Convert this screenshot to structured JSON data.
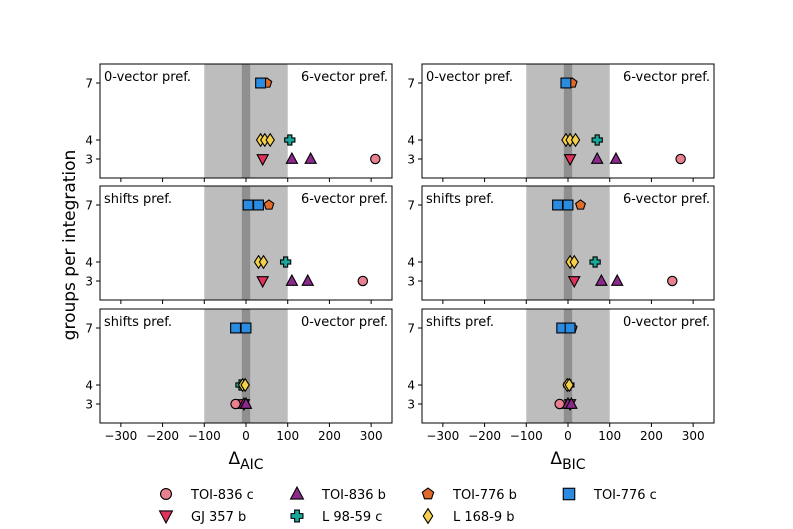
{
  "chart_data": {
    "type": "scatter",
    "ylabel": "groups per integration",
    "columns": [
      {
        "xlabel_main": "Δ",
        "xlabel_sub": "AIC"
      },
      {
        "xlabel_main": "Δ",
        "xlabel_sub": "BIC"
      }
    ],
    "xlim": [
      -350,
      350
    ],
    "ylim": [
      2,
      8
    ],
    "xticks": [
      -300,
      -200,
      -100,
      0,
      100,
      200,
      300
    ],
    "xtick_labels": [
      "−300",
      "−200",
      "−100",
      "0",
      "100",
      "200",
      "300"
    ],
    "yticks": [
      3,
      4,
      7
    ],
    "ytick_labels": [
      "3",
      "4",
      "7"
    ],
    "shaded_outer": [
      -100,
      100
    ],
    "shaded_inner": [
      -10,
      10
    ],
    "series": [
      {
        "name": "TOI-836 c",
        "marker": "circle",
        "color": "#e8808f"
      },
      {
        "name": "GJ 357 b",
        "marker": "triangle-down",
        "color": "#e0315a"
      },
      {
        "name": "TOI-836 b",
        "marker": "triangle-up",
        "color": "#8b2a8b"
      },
      {
        "name": "L 98-59 c",
        "marker": "plus",
        "color": "#1aa89a"
      },
      {
        "name": "TOI-776 b",
        "marker": "pentagon",
        "color": "#e06a2a"
      },
      {
        "name": "L 168-9 b",
        "marker": "diamond",
        "color": "#f5d04a"
      },
      {
        "name": "TOI-776 c",
        "marker": "square",
        "color": "#2b8be0"
      }
    ],
    "panels": [
      {
        "row": 0,
        "col": 0,
        "left_label": "0-vector pref.",
        "right_label": "6-vector pref.",
        "points": [
          {
            "series": 0,
            "x": 310,
            "y": 3
          },
          {
            "series": 1,
            "x": 40,
            "y": 3
          },
          {
            "series": 2,
            "x": 110,
            "y": 3
          },
          {
            "series": 2,
            "x": 155,
            "y": 3
          },
          {
            "series": 3,
            "x": 105,
            "y": 4
          },
          {
            "series": 5,
            "x": 35,
            "y": 4
          },
          {
            "series": 5,
            "x": 45,
            "y": 4
          },
          {
            "series": 5,
            "x": 58,
            "y": 4
          },
          {
            "series": 4,
            "x": 50,
            "y": 7
          },
          {
            "series": 6,
            "x": 35,
            "y": 7
          }
        ]
      },
      {
        "row": 0,
        "col": 1,
        "left_label": "0-vector pref.",
        "right_label": "6-vector pref.",
        "points": [
          {
            "series": 0,
            "x": 270,
            "y": 3
          },
          {
            "series": 1,
            "x": 5,
            "y": 3
          },
          {
            "series": 2,
            "x": 70,
            "y": 3
          },
          {
            "series": 2,
            "x": 115,
            "y": 3
          },
          {
            "series": 3,
            "x": 70,
            "y": 4
          },
          {
            "series": 5,
            "x": -5,
            "y": 4
          },
          {
            "series": 5,
            "x": 5,
            "y": 4
          },
          {
            "series": 5,
            "x": 18,
            "y": 4
          },
          {
            "series": 4,
            "x": 10,
            "y": 7
          },
          {
            "series": 6,
            "x": -5,
            "y": 7
          }
        ]
      },
      {
        "row": 1,
        "col": 0,
        "left_label": "shifts pref.",
        "right_label": "6-vector pref.",
        "points": [
          {
            "series": 0,
            "x": 280,
            "y": 3
          },
          {
            "series": 1,
            "x": 40,
            "y": 3
          },
          {
            "series": 2,
            "x": 110,
            "y": 3
          },
          {
            "series": 2,
            "x": 148,
            "y": 3
          },
          {
            "series": 3,
            "x": 95,
            "y": 4
          },
          {
            "series": 5,
            "x": 30,
            "y": 4
          },
          {
            "series": 5,
            "x": 42,
            "y": 4
          },
          {
            "series": 4,
            "x": 55,
            "y": 7
          },
          {
            "series": 6,
            "x": 5,
            "y": 7
          },
          {
            "series": 6,
            "x": 30,
            "y": 7
          }
        ]
      },
      {
        "row": 1,
        "col": 1,
        "left_label": "shifts pref.",
        "right_label": "6-vector pref.",
        "points": [
          {
            "series": 0,
            "x": 250,
            "y": 3
          },
          {
            "series": 1,
            "x": 15,
            "y": 3
          },
          {
            "series": 2,
            "x": 80,
            "y": 3
          },
          {
            "series": 2,
            "x": 118,
            "y": 3
          },
          {
            "series": 3,
            "x": 65,
            "y": 4
          },
          {
            "series": 5,
            "x": 5,
            "y": 4
          },
          {
            "series": 5,
            "x": 15,
            "y": 4
          },
          {
            "series": 4,
            "x": 30,
            "y": 7
          },
          {
            "series": 6,
            "x": -25,
            "y": 7
          },
          {
            "series": 6,
            "x": 0,
            "y": 7
          }
        ]
      },
      {
        "row": 2,
        "col": 0,
        "left_label": "shifts pref.",
        "right_label": "0-vector pref.",
        "points": [
          {
            "series": 0,
            "x": -25,
            "y": 3
          },
          {
            "series": 1,
            "x": -5,
            "y": 3
          },
          {
            "series": 2,
            "x": -5,
            "y": 3
          },
          {
            "series": 2,
            "x": 0,
            "y": 3
          },
          {
            "series": 3,
            "x": -12,
            "y": 4
          },
          {
            "series": 5,
            "x": -8,
            "y": 4
          },
          {
            "series": 5,
            "x": -2,
            "y": 4
          },
          {
            "series": 4,
            "x": 0,
            "y": 7
          },
          {
            "series": 6,
            "x": -25,
            "y": 7
          },
          {
            "series": 6,
            "x": 0,
            "y": 7
          }
        ]
      },
      {
        "row": 2,
        "col": 1,
        "left_label": "shifts pref.",
        "right_label": "0-vector pref.",
        "points": [
          {
            "series": 0,
            "x": -20,
            "y": 3
          },
          {
            "series": 1,
            "x": 5,
            "y": 3
          },
          {
            "series": 2,
            "x": 0,
            "y": 3
          },
          {
            "series": 2,
            "x": 8,
            "y": 3
          },
          {
            "series": 3,
            "x": 2,
            "y": 4
          },
          {
            "series": 5,
            "x": -2,
            "y": 4
          },
          {
            "series": 5,
            "x": 3,
            "y": 4
          },
          {
            "series": 4,
            "x": 10,
            "y": 7
          },
          {
            "series": 6,
            "x": -15,
            "y": 7
          },
          {
            "series": 6,
            "x": 5,
            "y": 7
          }
        ]
      }
    ],
    "legend": {
      "placement": "bottom",
      "rows": [
        [
          0,
          2,
          4,
          6
        ],
        [
          1,
          3,
          5
        ]
      ]
    }
  }
}
